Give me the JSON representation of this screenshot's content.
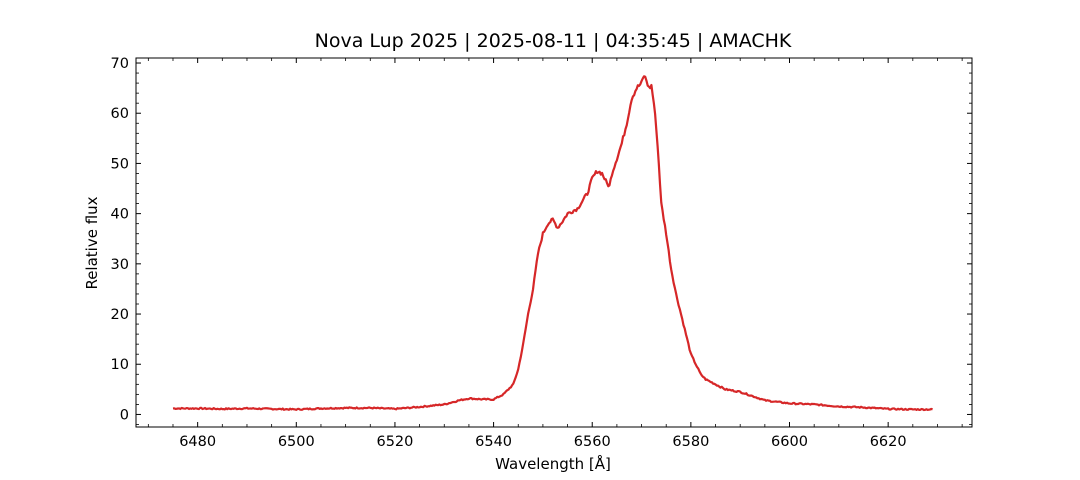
{
  "chart_data": {
    "type": "line",
    "title": "Nova Lup 2025 | 2025-08-11 | 04:35:45 | AMACHK",
    "xlabel": "Wavelength [Å]",
    "ylabel": "Relative flux",
    "xlim": [
      6467.5,
      6637.0
    ],
    "ylim": [
      -2.5,
      71.0
    ],
    "xticks": [
      6480,
      6500,
      6520,
      6540,
      6560,
      6580,
      6600,
      6620
    ],
    "yticks": [
      0,
      10,
      20,
      30,
      40,
      50,
      60,
      70
    ],
    "x_minor_step": 5,
    "y_minor_step": 2,
    "ticks_direction": "in",
    "grid": false,
    "legend": "none",
    "series": [
      {
        "color": "#d62728",
        "x": [
          6475,
          6480,
          6485,
          6490,
          6495,
          6500,
          6505,
          6510,
          6515,
          6520,
          6525,
          6530,
          6533,
          6535,
          6538,
          6540,
          6542,
          6543,
          6544,
          6545,
          6546,
          6547,
          6548,
          6549,
          6550,
          6551,
          6552,
          6553,
          6554,
          6555,
          6556,
          6557,
          6558,
          6559,
          6560,
          6561,
          6562,
          6563,
          6563.5,
          6564,
          6565,
          6566,
          6567,
          6568,
          6569,
          6570,
          6570.5,
          6571,
          6571.5,
          6572,
          6572.5,
          6573,
          6573.5,
          6574,
          6575,
          6576,
          6577,
          6578,
          6579,
          6580,
          6581,
          6582,
          6583,
          6584,
          6585,
          6587,
          6590,
          6593,
          6595,
          6600,
          6605,
          6610,
          6615,
          6620,
          6625,
          6629
        ],
        "y": [
          1.2,
          1.2,
          1.1,
          1.2,
          1.1,
          1.0,
          1.2,
          1.3,
          1.3,
          1.1,
          1.5,
          2.0,
          2.8,
          3.2,
          3.0,
          3.0,
          4.0,
          5.0,
          6.0,
          9.0,
          14.0,
          20.0,
          25.0,
          32.0,
          36.0,
          38.0,
          38.8,
          37.2,
          38.5,
          40.0,
          40.5,
          41.0,
          42.5,
          44.0,
          47.0,
          48.5,
          48.0,
          46.0,
          45.5,
          48.0,
          51.0,
          54.0,
          58.0,
          63.0,
          65.0,
          66.0,
          67.5,
          66.5,
          65.0,
          65.5,
          62.0,
          57.0,
          50.0,
          42.0,
          36.0,
          29.0,
          24.0,
          20.0,
          16.0,
          12.0,
          10.0,
          8.0,
          7.0,
          6.5,
          6.0,
          5.0,
          4.5,
          3.5,
          2.8,
          2.2,
          2.0,
          1.6,
          1.4,
          1.1,
          1.0,
          1.0
        ]
      }
    ]
  }
}
